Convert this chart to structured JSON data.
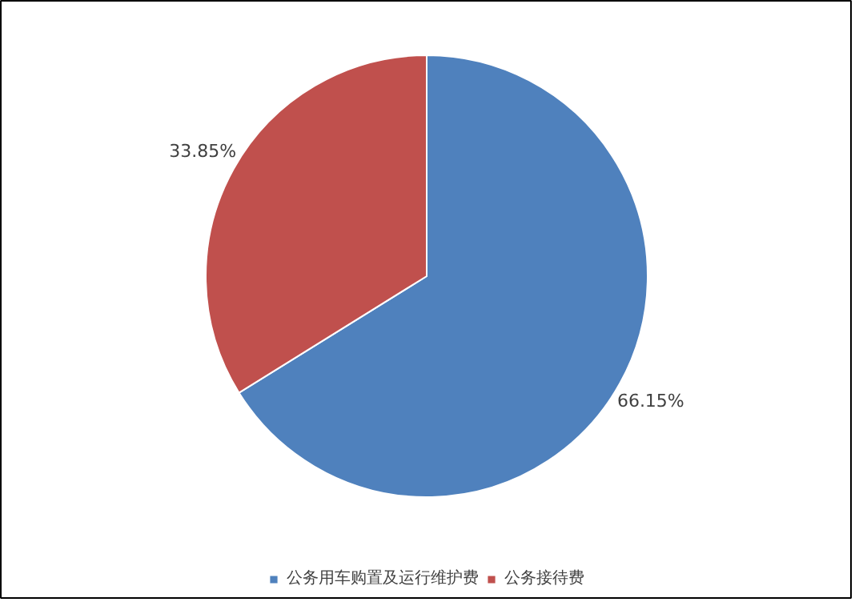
{
  "chart_data": {
    "type": "pie",
    "categories": [
      "公务用车购置及运行维护费",
      "公务接待费"
    ],
    "values": [
      66.15,
      33.85
    ],
    "colors": [
      "#4f81bd",
      "#c0504d"
    ],
    "value_labels": [
      "66.15%",
      "33.85%"
    ],
    "legend": "bottom"
  }
}
